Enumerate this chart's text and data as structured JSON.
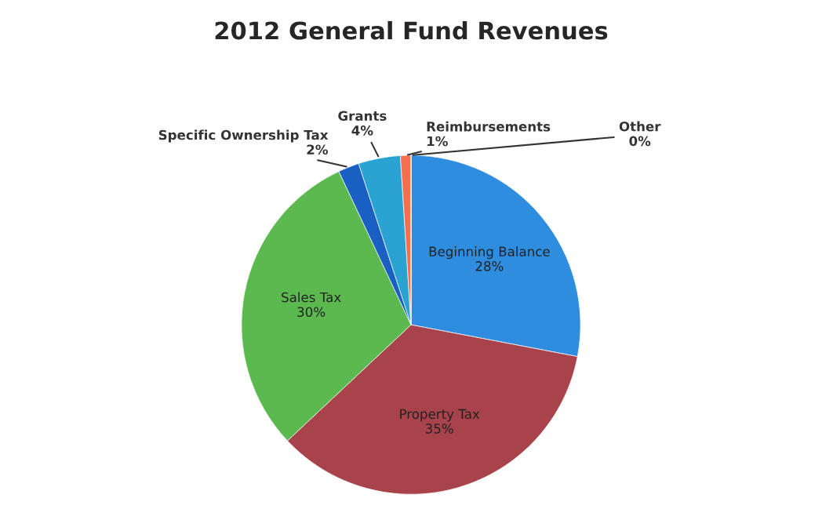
{
  "chart_data": {
    "type": "pie",
    "title": "2012 General Fund Revenues",
    "categories": [
      "Beginning Balance",
      "Property Tax",
      "Sales Tax",
      "Specific Ownership Tax",
      "Grants",
      "Reimbursements",
      "Other"
    ],
    "values": [
      28,
      35,
      30,
      2,
      4,
      1,
      0
    ],
    "value_labels": [
      "28%",
      "35%",
      "30%",
      "2%",
      "4%",
      "1%",
      "0%"
    ],
    "colors": [
      "#2f8de0",
      "#a8434b",
      "#5cb94f",
      "#1a5fc2",
      "#2aa3d3",
      "#f2704f",
      "#c8c8c8"
    ],
    "legend": false
  }
}
